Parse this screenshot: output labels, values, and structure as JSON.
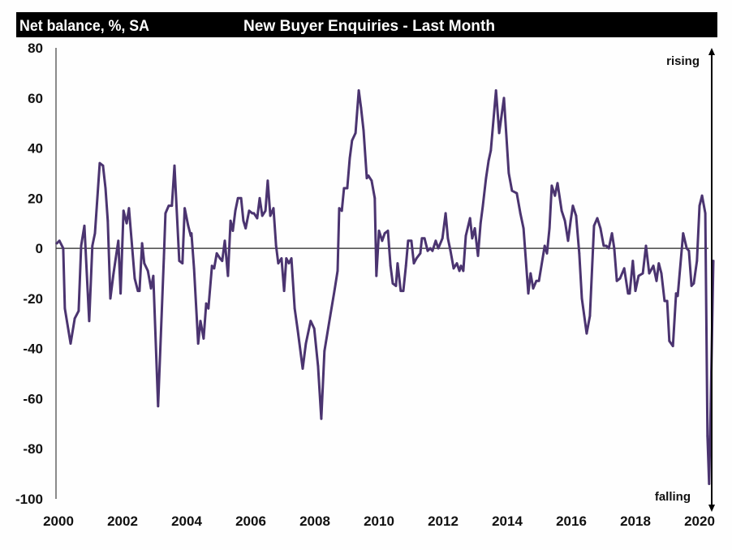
{
  "chart_data": {
    "type": "line",
    "title": "New Buyer Enquiries - Last Month",
    "ylabel": "Net balance, %, SA",
    "xlabel": "",
    "xlim": [
      2000,
      2020.3
    ],
    "ylim": [
      -100,
      80
    ],
    "yticks": [
      80,
      60,
      40,
      20,
      0,
      -20,
      -40,
      -60,
      -80,
      -100
    ],
    "ytick_labels": [
      "80",
      "60",
      "40",
      "20",
      "0",
      "-20",
      "-40",
      "-60",
      "-80",
      "-100"
    ],
    "xticks": [
      2000,
      2002,
      2004,
      2006,
      2008,
      2010,
      2012,
      2014,
      2016,
      2018,
      2020
    ],
    "xtick_labels": [
      "2000",
      "2002",
      "2004",
      "2006",
      "2008",
      "2010",
      "2012",
      "2014",
      "2016",
      "2018",
      "2020"
    ],
    "grid": false,
    "zero_line": true,
    "annotations": {
      "top": "rising",
      "bottom": "falling"
    },
    "line_color": "#4b3470",
    "series": [
      {
        "name": "New Buyer Enquiries",
        "points": [
          [
            2000.0,
            2
          ],
          [
            2000.08,
            3
          ],
          [
            2000.2,
            0
          ],
          [
            2000.25,
            -24
          ],
          [
            2000.43,
            -38
          ],
          [
            2000.56,
            -28
          ],
          [
            2000.68,
            -25
          ],
          [
            2000.76,
            1
          ],
          [
            2000.86,
            9
          ],
          [
            2001.01,
            -29
          ],
          [
            2001.11,
            1
          ],
          [
            2001.19,
            6
          ],
          [
            2001.34,
            34
          ],
          [
            2001.44,
            33
          ],
          [
            2001.52,
            24
          ],
          [
            2001.59,
            11
          ],
          [
            2001.67,
            -20
          ],
          [
            2001.77,
            -10
          ],
          [
            2001.92,
            3
          ],
          [
            2001.99,
            -18
          ],
          [
            2002.08,
            15
          ],
          [
            2002.18,
            10
          ],
          [
            2002.25,
            16
          ],
          [
            2002.43,
            -12
          ],
          [
            2002.53,
            -17
          ],
          [
            2002.58,
            -17
          ],
          [
            2002.66,
            2
          ],
          [
            2002.73,
            -6
          ],
          [
            2002.84,
            -9
          ],
          [
            2002.94,
            -16
          ],
          [
            2003.01,
            -11
          ],
          [
            2003.16,
            -63
          ],
          [
            2003.34,
            -4
          ],
          [
            2003.39,
            14
          ],
          [
            2003.49,
            17
          ],
          [
            2003.59,
            17
          ],
          [
            2003.67,
            33
          ],
          [
            2003.82,
            -5
          ],
          [
            2003.92,
            -6
          ],
          [
            2003.99,
            16
          ],
          [
            2004.1,
            9
          ],
          [
            2004.18,
            5
          ],
          [
            2004.2,
            6
          ],
          [
            2004.28,
            -8
          ],
          [
            2004.41,
            -38
          ],
          [
            2004.48,
            -29
          ],
          [
            2004.58,
            -36
          ],
          [
            2004.66,
            -22
          ],
          [
            2004.73,
            -24
          ],
          [
            2004.84,
            -7
          ],
          [
            2004.91,
            -8
          ],
          [
            2004.99,
            -2
          ],
          [
            2005.09,
            -4
          ],
          [
            2005.16,
            -5
          ],
          [
            2005.24,
            3
          ],
          [
            2005.34,
            -11
          ],
          [
            2005.42,
            11
          ],
          [
            2005.49,
            7
          ],
          [
            2005.57,
            15
          ],
          [
            2005.65,
            20
          ],
          [
            2005.75,
            20
          ],
          [
            2005.82,
            11
          ],
          [
            2005.89,
            8
          ],
          [
            2006.0,
            15
          ],
          [
            2006.1,
            14
          ],
          [
            2006.15,
            14
          ],
          [
            2006.25,
            12
          ],
          [
            2006.33,
            20
          ],
          [
            2006.41,
            13
          ],
          [
            2006.51,
            15
          ],
          [
            2006.58,
            27
          ],
          [
            2006.66,
            13
          ],
          [
            2006.76,
            16
          ],
          [
            2006.84,
            1
          ],
          [
            2006.91,
            -6
          ],
          [
            2007.01,
            -4
          ],
          [
            2007.09,
            -17
          ],
          [
            2007.16,
            -4
          ],
          [
            2007.24,
            -6
          ],
          [
            2007.32,
            -4
          ],
          [
            2007.42,
            -24
          ],
          [
            2007.52,
            -33
          ],
          [
            2007.67,
            -48
          ],
          [
            2007.77,
            -38
          ],
          [
            2007.92,
            -29
          ],
          [
            2008.03,
            -32
          ],
          [
            2008.15,
            -47
          ],
          [
            2008.25,
            -68
          ],
          [
            2008.35,
            -41
          ],
          [
            2008.53,
            -27
          ],
          [
            2008.66,
            -17
          ],
          [
            2008.76,
            -9
          ],
          [
            2008.81,
            16
          ],
          [
            2008.89,
            15
          ],
          [
            2008.96,
            24
          ],
          [
            2009.06,
            24
          ],
          [
            2009.14,
            36
          ],
          [
            2009.21,
            43
          ],
          [
            2009.32,
            46
          ],
          [
            2009.42,
            63
          ],
          [
            2009.49,
            56
          ],
          [
            2009.57,
            47
          ],
          [
            2009.67,
            28
          ],
          [
            2009.72,
            29
          ],
          [
            2009.82,
            27
          ],
          [
            2009.92,
            20
          ],
          [
            2009.97,
            -11
          ],
          [
            2010.05,
            7
          ],
          [
            2010.15,
            3
          ],
          [
            2010.23,
            6
          ],
          [
            2010.33,
            7
          ],
          [
            2010.41,
            -7
          ],
          [
            2010.48,
            -14
          ],
          [
            2010.58,
            -15
          ],
          [
            2010.63,
            -6
          ],
          [
            2010.73,
            -17
          ],
          [
            2010.81,
            -17
          ],
          [
            2010.89,
            -7
          ],
          [
            2010.96,
            3
          ],
          [
            2011.06,
            3
          ],
          [
            2011.14,
            -6
          ],
          [
            2011.22,
            -4
          ],
          [
            2011.34,
            -2
          ],
          [
            2011.39,
            4
          ],
          [
            2011.47,
            4
          ],
          [
            2011.57,
            -1
          ],
          [
            2011.65,
            0
          ],
          [
            2011.72,
            -1
          ],
          [
            2011.82,
            3
          ],
          [
            2011.9,
            0
          ],
          [
            2012.03,
            4
          ],
          [
            2012.13,
            14
          ],
          [
            2012.2,
            4
          ],
          [
            2012.28,
            -1
          ],
          [
            2012.38,
            -8
          ],
          [
            2012.48,
            -6
          ],
          [
            2012.56,
            -9
          ],
          [
            2012.61,
            -7
          ],
          [
            2012.68,
            -9
          ],
          [
            2012.76,
            5
          ],
          [
            2012.89,
            12
          ],
          [
            2012.96,
            4
          ],
          [
            2013.04,
            8
          ],
          [
            2013.14,
            -3
          ],
          [
            2013.22,
            10
          ],
          [
            2013.29,
            17
          ],
          [
            2013.39,
            28
          ],
          [
            2013.47,
            35
          ],
          [
            2013.54,
            39
          ],
          [
            2013.7,
            63
          ],
          [
            2013.8,
            46
          ],
          [
            2013.95,
            60
          ],
          [
            2014.1,
            30
          ],
          [
            2014.2,
            23
          ],
          [
            2014.35,
            22
          ],
          [
            2014.46,
            14
          ],
          [
            2014.56,
            8
          ],
          [
            2014.71,
            -18
          ],
          [
            2014.78,
            -10
          ],
          [
            2014.86,
            -16
          ],
          [
            2014.96,
            -13
          ],
          [
            2015.04,
            -13
          ],
          [
            2015.22,
            1
          ],
          [
            2015.29,
            -2
          ],
          [
            2015.37,
            8
          ],
          [
            2015.44,
            25
          ],
          [
            2015.54,
            21
          ],
          [
            2015.62,
            26
          ],
          [
            2015.75,
            15
          ],
          [
            2015.85,
            11
          ],
          [
            2015.95,
            3
          ],
          [
            2016.03,
            11
          ],
          [
            2016.1,
            17
          ],
          [
            2016.2,
            13
          ],
          [
            2016.3,
            -2
          ],
          [
            2016.38,
            -20
          ],
          [
            2016.53,
            -34
          ],
          [
            2016.63,
            -27
          ],
          [
            2016.76,
            9
          ],
          [
            2016.86,
            12
          ],
          [
            2016.96,
            8
          ],
          [
            2017.06,
            1
          ],
          [
            2017.14,
            1
          ],
          [
            2017.22,
            0
          ],
          [
            2017.32,
            6
          ],
          [
            2017.39,
            0
          ],
          [
            2017.47,
            -13
          ],
          [
            2017.57,
            -12
          ],
          [
            2017.7,
            -8
          ],
          [
            2017.82,
            -18
          ],
          [
            2017.87,
            -18
          ],
          [
            2017.97,
            -5
          ],
          [
            2018.05,
            -17
          ],
          [
            2018.15,
            -11
          ],
          [
            2018.28,
            -10
          ],
          [
            2018.38,
            1
          ],
          [
            2018.48,
            -10
          ],
          [
            2018.61,
            -7
          ],
          [
            2018.71,
            -13
          ],
          [
            2018.78,
            -6
          ],
          [
            2018.86,
            -10
          ],
          [
            2018.96,
            -21
          ],
          [
            2019.04,
            -21
          ],
          [
            2019.11,
            -37
          ],
          [
            2019.22,
            -39
          ],
          [
            2019.32,
            -18
          ],
          [
            2019.37,
            -19
          ],
          [
            2019.54,
            6
          ],
          [
            2019.65,
            0
          ],
          [
            2019.72,
            -1
          ],
          [
            2019.8,
            -15
          ],
          [
            2019.87,
            -14
          ],
          [
            2019.97,
            -5
          ],
          [
            2020.05,
            17
          ],
          [
            2020.13,
            21
          ],
          [
            2020.23,
            14
          ],
          [
            2020.3,
            -75
          ],
          [
            2020.35,
            -94
          ],
          [
            2020.4,
            -62
          ],
          [
            2020.48,
            -5
          ]
        ]
      }
    ]
  }
}
